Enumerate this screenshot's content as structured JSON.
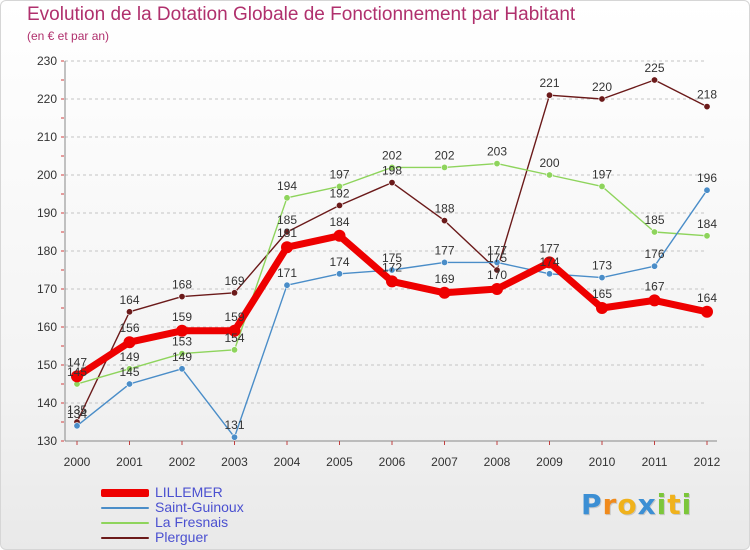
{
  "brand": {
    "letters": [
      {
        "ch": "P",
        "color": "#3c8fd4"
      },
      {
        "ch": "r",
        "color": "#f08a1c"
      },
      {
        "ch": "o",
        "color": "#f0b21c"
      },
      {
        "ch": "x",
        "color": "#3c8fd4"
      },
      {
        "ch": "i",
        "color": "#7cc63a"
      },
      {
        "ch": "t",
        "color": "#f0b21c"
      },
      {
        "ch": "i",
        "color": "#7cc63a"
      }
    ]
  },
  "chart_data": {
    "type": "line",
    "title": "Evolution de la Dotation Globale de Fonctionnement par Habitant",
    "subtitle": "(en € et par an)",
    "xlabel": "",
    "ylabel": "",
    "x": [
      "2000",
      "2001",
      "2002",
      "2003",
      "2004",
      "2005",
      "2006",
      "2007",
      "2008",
      "2009",
      "2010",
      "2011",
      "2012"
    ],
    "ylim": [
      130,
      230
    ],
    "yticks": [
      130,
      140,
      150,
      160,
      170,
      180,
      190,
      200,
      210,
      220,
      230
    ],
    "grid": "horizontal-dashed",
    "series": [
      {
        "name": "Plerguer",
        "color": "#6b1a1a",
        "values": [
          135,
          164,
          168,
          169,
          185,
          192,
          198,
          188,
          175,
          221,
          220,
          225,
          218
        ]
      },
      {
        "name": "La Fresnais",
        "color": "#8ed45c",
        "values": [
          145,
          149,
          153,
          154,
          194,
          197,
          202,
          202,
          203,
          200,
          197,
          185,
          184
        ]
      },
      {
        "name": "Saint-Guinoux",
        "color": "#4a8dc8",
        "values": [
          134,
          145,
          149,
          131,
          171,
          174,
          175,
          177,
          177,
          174,
          173,
          176,
          196
        ]
      },
      {
        "name": "LILLEMER",
        "color": "#ee0000",
        "values": [
          147,
          156,
          159,
          159,
          181,
          184,
          172,
          169,
          170,
          177,
          165,
          167,
          164
        ]
      }
    ],
    "legend": {
      "position": "bottom-left",
      "order": [
        "LILLEMER",
        "Saint-Guinoux",
        "La Fresnais",
        "Plerguer"
      ]
    }
  }
}
